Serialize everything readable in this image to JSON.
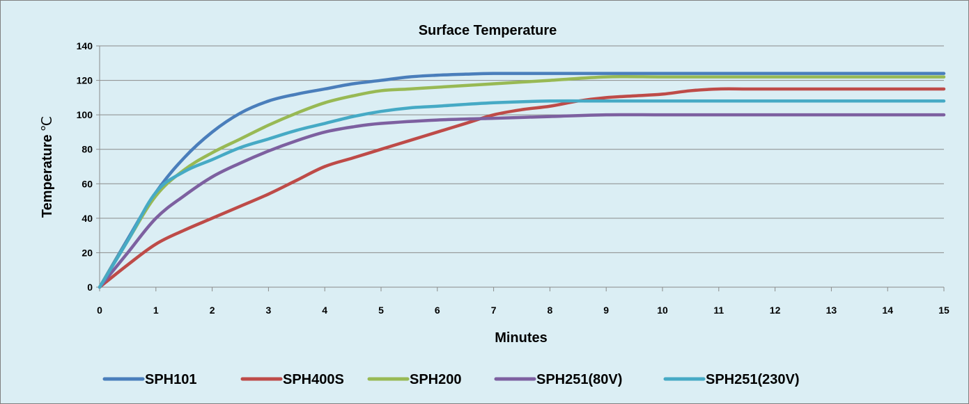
{
  "chart_data": {
    "type": "line",
    "title": "Surface Temperature",
    "xlabel": "Minutes",
    "ylabel": "Temperature",
    "ylabel_unit": "℃",
    "xlim": [
      0,
      15
    ],
    "ylim": [
      0,
      140
    ],
    "x_ticks": [
      "0",
      "1",
      "2",
      "3",
      "4",
      "5",
      "6",
      "7",
      "8",
      "9",
      "10",
      "11",
      "12",
      "13",
      "14",
      "15"
    ],
    "y_ticks": [
      "0",
      "20",
      "40",
      "60",
      "80",
      "100",
      "120",
      "140"
    ],
    "grid": "horizontal",
    "legend_position": "bottom",
    "series": [
      {
        "name": "SPH101",
        "color": "#4a7ebb",
        "x": [
          0,
          0.5,
          1,
          1.5,
          2,
          2.5,
          3,
          3.5,
          4,
          4.5,
          5,
          5.5,
          6,
          6.5,
          7,
          8,
          9,
          10,
          11,
          12,
          13,
          14,
          15
        ],
        "y": [
          0,
          28,
          55,
          75,
          90,
          101,
          108,
          112,
          115,
          118,
          120,
          122,
          123,
          123.6,
          124,
          124,
          124,
          124,
          124,
          124,
          124,
          124,
          124
        ]
      },
      {
        "name": "SPH400S",
        "color": "#be4b48",
        "x": [
          0,
          0.5,
          1,
          1.5,
          2,
          2.5,
          3,
          3.5,
          4,
          4.5,
          5,
          5.5,
          6,
          6.5,
          7,
          7.5,
          8,
          8.5,
          9,
          9.5,
          10,
          10.5,
          11,
          11.5,
          12,
          13,
          14,
          15
        ],
        "y": [
          0,
          13,
          25,
          33,
          40,
          47,
          54,
          62,
          70,
          75,
          80,
          85,
          90,
          95,
          100,
          103,
          105,
          108,
          110,
          111,
          112,
          114,
          115,
          115,
          115,
          115,
          115,
          115
        ]
      },
      {
        "name": "SPH200",
        "color": "#98b954",
        "x": [
          0,
          0.5,
          1,
          1.5,
          2,
          2.5,
          3,
          3.5,
          4,
          4.5,
          5,
          5.5,
          6,
          7,
          8,
          9,
          10,
          11,
          12,
          13,
          14,
          15
        ],
        "y": [
          0,
          27,
          53,
          68,
          78,
          86,
          94,
          101,
          107,
          111,
          114,
          115,
          116,
          118,
          120,
          122,
          122,
          122,
          122,
          122,
          122,
          122
        ]
      },
      {
        "name": "SPH251(80V)",
        "color": "#7d60a0",
        "x": [
          0,
          0.5,
          1,
          1.5,
          2,
          2.5,
          3,
          3.5,
          4,
          4.5,
          5,
          6,
          7,
          8,
          9,
          10,
          11,
          12,
          13,
          14,
          15
        ],
        "y": [
          0,
          20,
          40,
          53,
          64,
          72,
          79,
          85,
          90,
          93,
          95,
          97,
          98,
          99,
          100,
          100,
          100,
          100,
          100,
          100,
          100
        ]
      },
      {
        "name": "SPH251(230V)",
        "color": "#46aac5",
        "x": [
          0,
          0.5,
          1,
          1.5,
          2,
          2.5,
          3,
          3.5,
          4,
          4.5,
          5,
          5.5,
          6,
          7,
          8,
          9,
          10,
          11,
          12,
          13,
          14,
          15
        ],
        "y": [
          0,
          27,
          55,
          67,
          74,
          81,
          86,
          91,
          95,
          99,
          102,
          104,
          105,
          107,
          108,
          108,
          108,
          108,
          108,
          108,
          108,
          108
        ]
      }
    ]
  }
}
